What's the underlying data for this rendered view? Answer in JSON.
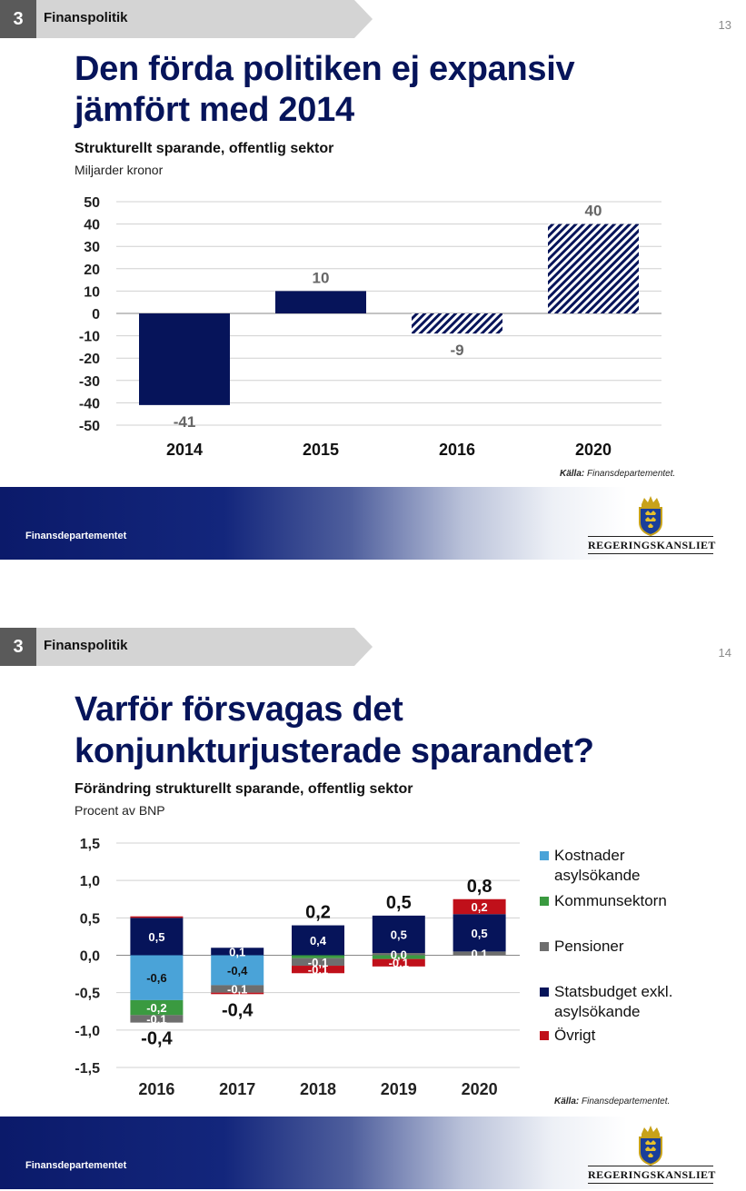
{
  "slides": [
    {
      "section_number": "3",
      "section_label": "Finanspolitik",
      "page_number": "13",
      "title_line1": "Den förda politiken ej expansiv",
      "title_line2": "jämfört med 2014",
      "chart_title": "Strukturellt sparande, offentlig sektor",
      "unit": "Miljarder kronor",
      "source_label": "Källa:",
      "source_text": "Finansdepartementet.",
      "footer_label": "Finansdepartementet",
      "brand": "REGERINGSKANSLIET"
    },
    {
      "section_number": "3",
      "section_label": "Finanspolitik",
      "page_number": "14",
      "title_line1": "Varför försvagas det",
      "title_line2": "konjunkturjusterade sparandet?",
      "chart_title": "Förändring strukturellt sparande, offentlig sektor",
      "unit": "Procent av BNP",
      "source_label": "Källa:",
      "source_text": "Finansdepartementet.",
      "footer_label": "Finansdepartementet",
      "brand": "REGERINGSKANSLIET"
    }
  ],
  "colors": {
    "navy": "#06145a",
    "title_blue": "#06145a",
    "light_blue": "#4aa3d8",
    "green": "#3a9a40",
    "grey": "#6e6e6e",
    "red": "#c0101a"
  },
  "chart_data": [
    {
      "type": "bar",
      "title": "Strukturellt sparande, offentlig sektor",
      "ylabel": "Miljarder kronor",
      "categories": [
        "2014",
        "2015",
        "2016",
        "2020"
      ],
      "values": [
        -41,
        10,
        -9,
        40
      ],
      "value_labels": [
        "-41",
        "10",
        "-9",
        "40"
      ],
      "bar_pattern": [
        "solid",
        "solid",
        "hatched",
        "hatched"
      ],
      "ylim": [
        -50,
        50
      ],
      "y_ticks": [
        "50",
        "40",
        "30",
        "20",
        "10",
        "0",
        "-10",
        "-20",
        "-30",
        "-40",
        "-50"
      ],
      "grid": true
    },
    {
      "type": "bar",
      "stacked": true,
      "title": "Förändring strukturellt sparande, offentlig sektor",
      "ylabel": "Procent av BNP",
      "categories": [
        "2016",
        "2017",
        "2018",
        "2019",
        "2020"
      ],
      "ylim": [
        -1.5,
        1.5
      ],
      "y_ticks": [
        "1,5",
        "1,0",
        "0,5",
        "0,0",
        "-0,5",
        "-1,0",
        "-1,5"
      ],
      "grid": true,
      "legend_position": "right",
      "series": [
        {
          "name": "Kostnader asylsökande",
          "color": "#4aa3d8",
          "values": [
            -0.6,
            -0.4,
            0,
            0,
            0
          ],
          "labels": [
            "-0,6",
            "-0,4",
            "",
            "",
            ""
          ]
        },
        {
          "name": "Kommunsektorn",
          "color": "#3a9a40",
          "values": [
            -0.2,
            0,
            -0.04,
            -0.05,
            0
          ],
          "labels": [
            "-0,2",
            "",
            "",
            "",
            ""
          ]
        },
        {
          "name": "Pensioner",
          "color": "#6e6e6e",
          "values": [
            -0.1,
            -0.1,
            -0.1,
            0.03,
            0.05
          ],
          "labels": [
            "-0,1",
            "-0,1",
            "-0,1",
            "0,0",
            "0,1"
          ]
        },
        {
          "name": "Statsbudget exkl. asylsökande",
          "color": "#06145a",
          "values": [
            0.5,
            0.1,
            0.4,
            0.5,
            0.5
          ],
          "labels": [
            "0,5",
            "0,1",
            "0,4",
            "0,5",
            "0,5"
          ]
        },
        {
          "name": "Övrigt",
          "color": "#c0101a",
          "values": [
            0.02,
            -0.02,
            -0.1,
            -0.1,
            0.2
          ],
          "labels": [
            "",
            "",
            "-0,1",
            "-0,1",
            "0,2"
          ]
        }
      ],
      "totals": [
        -0.4,
        -0.4,
        0.2,
        0.5,
        0.8
      ],
      "total_labels": [
        "-0,4",
        "-0,4",
        "0,2",
        "0,5",
        "0,8"
      ],
      "legend": [
        {
          "line1": "Kostnader",
          "line2": "asylsökande",
          "color": "#4aa3d8"
        },
        {
          "line1": "Kommunsektorn",
          "line2": "",
          "color": "#3a9a40"
        },
        {
          "line1": "Pensioner",
          "line2": "",
          "color": "#6e6e6e"
        },
        {
          "line1": "Statsbudget exkl.",
          "line2": "asylsökande",
          "color": "#06145a"
        },
        {
          "line1": "Övrigt",
          "line2": "",
          "color": "#c0101a"
        }
      ]
    }
  ]
}
